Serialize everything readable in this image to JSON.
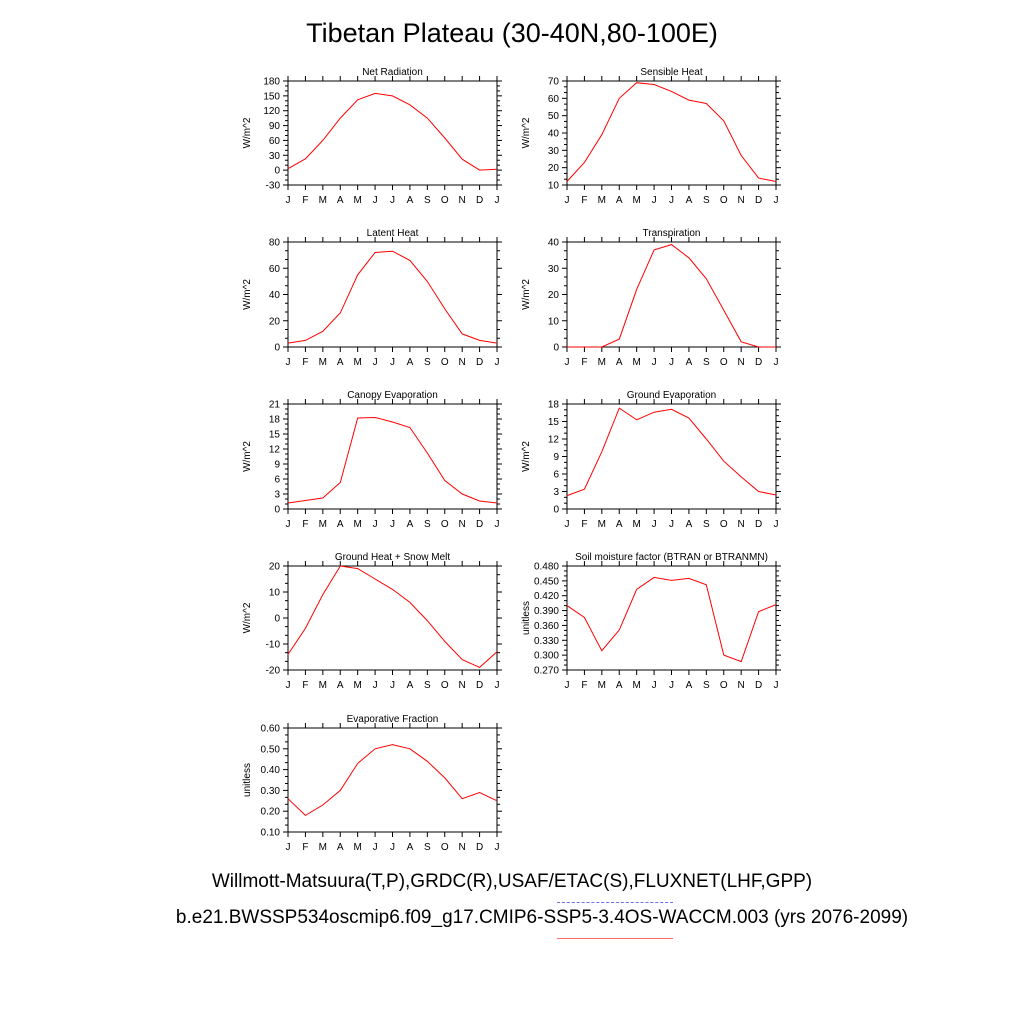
{
  "title": "Tibetan Plateau (30-40N,80-100E)",
  "months": [
    "J",
    "F",
    "M",
    "A",
    "M",
    "J",
    "J",
    "A",
    "S",
    "O",
    "N",
    "D",
    "J"
  ],
  "legend": {
    "obs_label": "Willmott-Matsuura(T,P),GRDC(R),USAF/ETAC(S),FLUXNET(LHF,GPP)",
    "model_label": "b.e21.BWSSP534oscmip6.f09_g17.CMIP6-SSP5-3.4OS-WACCM.003 (yrs 2076-2099)",
    "obs_color": "#6f6fe8",
    "model_color": "#ff0000"
  },
  "chart_data": [
    {
      "type": "line",
      "title": "Net Radiation",
      "ylabel": "W/m^2",
      "ylim": [
        -30,
        180
      ],
      "yticks": [
        "-30",
        "0",
        "30",
        "60",
        "90",
        "120",
        "150",
        "180"
      ],
      "x": [
        "Jan",
        "Feb",
        "Mar",
        "Apr",
        "May",
        "Jun",
        "Jul",
        "Aug",
        "Sep",
        "Oct",
        "Nov",
        "Dec",
        "Jan"
      ],
      "values": [
        3,
        23,
        60,
        105,
        142,
        155,
        150,
        132,
        105,
        65,
        22,
        0,
        2
      ]
    },
    {
      "type": "line",
      "title": "Sensible Heat",
      "ylabel": "W/m^2",
      "ylim": [
        10,
        70
      ],
      "yticks": [
        "10",
        "20",
        "30",
        "40",
        "50",
        "60",
        "70"
      ],
      "x": [
        "Jan",
        "Feb",
        "Mar",
        "Apr",
        "May",
        "Jun",
        "Jul",
        "Aug",
        "Sep",
        "Oct",
        "Nov",
        "Dec",
        "Jan"
      ],
      "values": [
        12,
        23,
        39,
        60,
        69,
        68,
        64,
        59,
        57,
        47,
        27,
        14,
        12
      ]
    },
    {
      "type": "line",
      "title": "Latent Heat",
      "ylabel": "W/m^2",
      "ylim": [
        0,
        80
      ],
      "yticks": [
        "0",
        "20",
        "40",
        "60",
        "80"
      ],
      "x": [
        "Jan",
        "Feb",
        "Mar",
        "Apr",
        "May",
        "Jun",
        "Jul",
        "Aug",
        "Sep",
        "Oct",
        "Nov",
        "Dec",
        "Jan"
      ],
      "values": [
        3,
        5,
        12,
        26,
        55,
        72,
        73,
        66,
        50,
        29,
        10,
        5,
        3
      ]
    },
    {
      "type": "line",
      "title": "Transpiration",
      "ylabel": "W/m^2",
      "ylim": [
        0,
        40
      ],
      "yticks": [
        "0",
        "10",
        "20",
        "30",
        "40"
      ],
      "x": [
        "Jan",
        "Feb",
        "Mar",
        "Apr",
        "May",
        "Jun",
        "Jul",
        "Aug",
        "Sep",
        "Oct",
        "Nov",
        "Dec",
        "Jan"
      ],
      "values": [
        0,
        0,
        0,
        3,
        22,
        37,
        39,
        34,
        26,
        14,
        2,
        0,
        0
      ]
    },
    {
      "type": "line",
      "title": "Canopy Evaporation",
      "ylabel": "W/m^2",
      "ylim": [
        0,
        21
      ],
      "yticks": [
        "0",
        "3",
        "6",
        "9",
        "12",
        "15",
        "18",
        "21"
      ],
      "x": [
        "Jan",
        "Feb",
        "Mar",
        "Apr",
        "May",
        "Jun",
        "Jul",
        "Aug",
        "Sep",
        "Oct",
        "Nov",
        "Dec",
        "Jan"
      ],
      "values": [
        1.2,
        1.7,
        2.2,
        5.3,
        18.2,
        18.3,
        17.4,
        16.3,
        11.2,
        5.7,
        3.0,
        1.6,
        1.2
      ]
    },
    {
      "type": "line",
      "title": "Ground Evaporation",
      "ylabel": "W/m^2",
      "ylim": [
        0,
        18
      ],
      "yticks": [
        "0",
        "3",
        "6",
        "9",
        "12",
        "15",
        "18"
      ],
      "x": [
        "Jan",
        "Feb",
        "Mar",
        "Apr",
        "May",
        "Jun",
        "Jul",
        "Aug",
        "Sep",
        "Oct",
        "Nov",
        "Dec",
        "Jan"
      ],
      "values": [
        2.3,
        3.4,
        9.8,
        17.3,
        15.3,
        16.6,
        17.1,
        15.6,
        12.0,
        8.2,
        5.5,
        3.0,
        2.4
      ]
    },
    {
      "type": "line",
      "title": "Ground Heat + Snow Melt",
      "ylabel": "W/m^2",
      "ylim": [
        -20,
        20
      ],
      "yticks": [
        "-20",
        "-10",
        "0",
        "10",
        "20"
      ],
      "x": [
        "Jan",
        "Feb",
        "Mar",
        "Apr",
        "May",
        "Jun",
        "Jul",
        "Aug",
        "Sep",
        "Oct",
        "Nov",
        "Dec",
        "Jan"
      ],
      "values": [
        -14,
        -4,
        9,
        20,
        19,
        15,
        11,
        6,
        -1,
        -9,
        -16,
        -19,
        -13
      ]
    },
    {
      "type": "line",
      "title": "Soil moisture factor (BTRAN or BTRANMN)",
      "ylabel": "unitless",
      "ylim": [
        0.27,
        0.48
      ],
      "yticks": [
        "0.270",
        "0.300",
        "0.330",
        "0.360",
        "0.390",
        "0.420",
        "0.450",
        "0.480"
      ],
      "x": [
        "Jan",
        "Feb",
        "Mar",
        "Apr",
        "May",
        "Jun",
        "Jul",
        "Aug",
        "Sep",
        "Oct",
        "Nov",
        "Dec",
        "Jan"
      ],
      "values": [
        0.4,
        0.376,
        0.309,
        0.351,
        0.433,
        0.457,
        0.451,
        0.455,
        0.442,
        0.3,
        0.287,
        0.388,
        0.402
      ]
    },
    {
      "type": "line",
      "title": "Evaporative Fraction",
      "ylabel": "unitless",
      "ylim": [
        0.1,
        0.6
      ],
      "yticks": [
        "0.10",
        "0.20",
        "0.30",
        "0.40",
        "0.50",
        "0.60"
      ],
      "x": [
        "Jan",
        "Feb",
        "Mar",
        "Apr",
        "May",
        "Jun",
        "Jul",
        "Aug",
        "Sep",
        "Oct",
        "Nov",
        "Dec",
        "Jan"
      ],
      "values": [
        0.26,
        0.18,
        0.23,
        0.3,
        0.43,
        0.5,
        0.52,
        0.5,
        0.44,
        0.36,
        0.26,
        0.29,
        0.25
      ]
    }
  ]
}
